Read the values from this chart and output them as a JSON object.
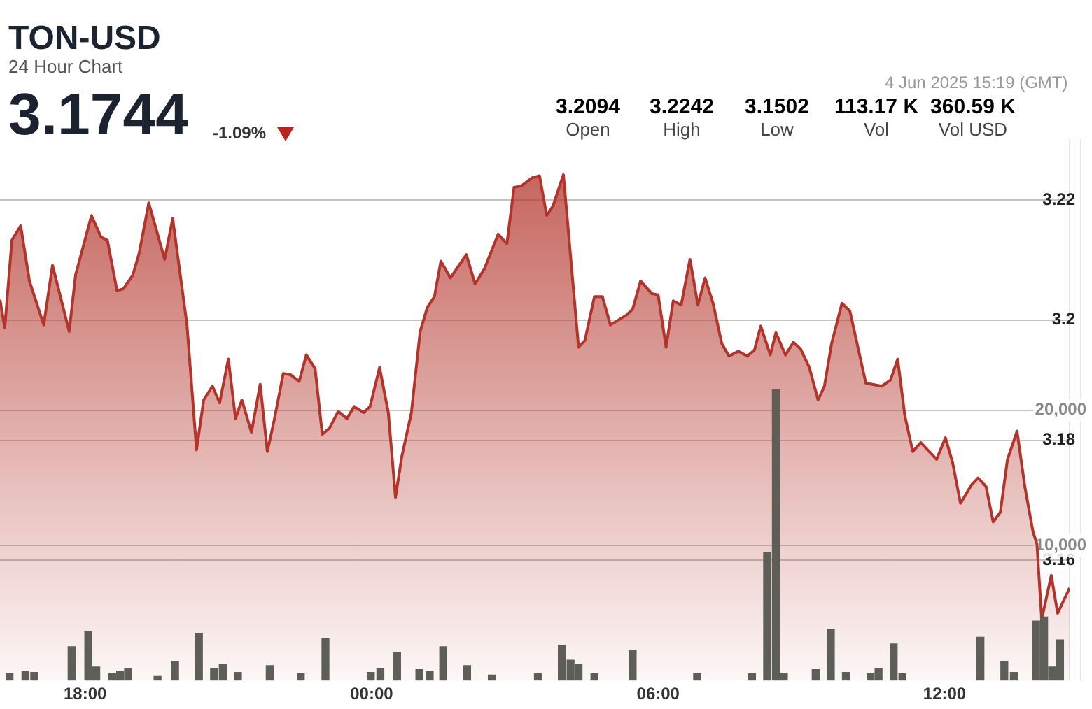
{
  "chart_data": {
    "type": "area",
    "title": "TON-USD",
    "subtitle": "24 Hour Chart",
    "annotations": [
      "3.1744",
      "-1.09%",
      "4 Jun 2025 15:19 (GMT)",
      "3.2094",
      "Open",
      "3.2242",
      "High",
      "3.1502",
      "Low",
      "113.17 K",
      "Vol",
      "360.59 K",
      "Vol USD"
    ],
    "xlim": [
      "2025-06-03T16:13",
      "2025-06-04T14:37"
    ],
    "xticks": [
      {
        "value": "2025-06-03T18:00",
        "label": "18:00"
      },
      {
        "value": "2025-06-04T00:00",
        "label": "00:00"
      },
      {
        "value": "2025-06-04T06:00",
        "label": "06:00"
      },
      {
        "value": "2025-06-04T12:00",
        "label": "12:00"
      }
    ],
    "ylim": [
      3.14,
      3.23
    ],
    "yticks": [
      3.16,
      3.18,
      3.2,
      3.22
    ],
    "y2lim": [
      0,
      40000
    ],
    "y2ticks": [
      {
        "value": 10000,
        "label": "10,000"
      },
      {
        "value": 20000,
        "label": "20,000"
      }
    ],
    "grid": "y",
    "legend": false,
    "marker": "none",
    "line_style": "solid",
    "series": [
      {
        "color": "#b3342a",
        "x": [
          "2025-06-03T16:13",
          "2025-06-03T16:19",
          "2025-06-03T16:28",
          "2025-06-03T16:39",
          "2025-06-03T16:50",
          "2025-06-03T17:08",
          "2025-06-03T17:19",
          "2025-06-03T17:40",
          "2025-06-03T17:48",
          "2025-06-03T18:08",
          "2025-06-03T18:20",
          "2025-06-03T18:28",
          "2025-06-03T18:40",
          "2025-06-03T18:48",
          "2025-06-03T19:00",
          "2025-06-03T19:08",
          "2025-06-03T19:20",
          "2025-06-03T19:40",
          "2025-06-03T19:50",
          "2025-06-03T20:08",
          "2025-06-03T20:20",
          "2025-06-03T20:29",
          "2025-06-03T20:40",
          "2025-06-03T20:49",
          "2025-06-03T21:00",
          "2025-06-03T21:09",
          "2025-06-03T21:17",
          "2025-06-03T21:29",
          "2025-06-03T21:40",
          "2025-06-03T21:49",
          "2025-06-03T21:58",
          "2025-06-03T22:09",
          "2025-06-03T22:18",
          "2025-06-03T22:29",
          "2025-06-03T22:38",
          "2025-06-03T22:49",
          "2025-06-03T22:58",
          "2025-06-03T23:07",
          "2025-06-03T23:18",
          "2025-06-03T23:29",
          "2025-06-03T23:38",
          "2025-06-03T23:50",
          "2025-06-03T23:58",
          "2025-06-04T00:10",
          "2025-06-04T00:21",
          "2025-06-04T00:30",
          "2025-06-04T00:38",
          "2025-06-04T00:50",
          "2025-06-04T01:01",
          "2025-06-04T01:10",
          "2025-06-04T01:19",
          "2025-06-04T01:27",
          "2025-06-04T01:39",
          "2025-06-04T01:59",
          "2025-06-04T02:10",
          "2025-06-04T02:22",
          "2025-06-04T02:39",
          "2025-06-04T02:50",
          "2025-06-04T02:59",
          "2025-06-04T03:08",
          "2025-06-04T03:22",
          "2025-06-04T03:31",
          "2025-06-04T03:40",
          "2025-06-04T03:48",
          "2025-06-04T04:01",
          "2025-06-04T04:20",
          "2025-06-04T04:28",
          "2025-06-04T04:40",
          "2025-06-04T04:50",
          "2025-06-04T05:00",
          "2025-06-04T05:20",
          "2025-06-04T05:28",
          "2025-06-04T05:38",
          "2025-06-04T05:52",
          "2025-06-04T06:00",
          "2025-06-04T06:10",
          "2025-06-04T06:19",
          "2025-06-04T06:29",
          "2025-06-04T06:40",
          "2025-06-04T06:50",
          "2025-06-04T06:59",
          "2025-06-04T07:09",
          "2025-06-04T07:20",
          "2025-06-04T07:29",
          "2025-06-04T07:41",
          "2025-06-04T07:52",
          "2025-06-04T08:01",
          "2025-06-04T08:09",
          "2025-06-04T08:21",
          "2025-06-04T08:28",
          "2025-06-04T08:40",
          "2025-06-04T08:50",
          "2025-06-04T08:59",
          "2025-06-04T09:10",
          "2025-06-04T09:21",
          "2025-06-04T09:29",
          "2025-06-04T09:38",
          "2025-06-04T09:51",
          "2025-06-04T10:01",
          "2025-06-04T10:21",
          "2025-06-04T10:41",
          "2025-06-04T10:52",
          "2025-06-04T11:01",
          "2025-06-04T11:10",
          "2025-06-04T11:20",
          "2025-06-04T11:30",
          "2025-06-04T11:50",
          "2025-06-04T12:01",
          "2025-06-04T12:10",
          "2025-06-04T12:20",
          "2025-06-04T12:34",
          "2025-06-04T12:42",
          "2025-06-04T12:52",
          "2025-06-04T13:01",
          "2025-06-04T13:10",
          "2025-06-04T13:19",
          "2025-06-04T13:31",
          "2025-06-04T13:41",
          "2025-06-04T13:51",
          "2025-06-04T13:56",
          "2025-06-04T14:02",
          "2025-06-04T14:14",
          "2025-06-04T14:22",
          "2025-06-04T14:37"
        ],
        "values": [
          3.2034,
          3.1987,
          3.2133,
          3.2157,
          3.2065,
          3.1992,
          3.2091,
          3.1981,
          3.2075,
          3.2174,
          3.2138,
          3.2133,
          3.2049,
          3.2052,
          3.2075,
          3.2112,
          3.2195,
          3.2101,
          3.2169,
          3.1992,
          3.1784,
          3.1867,
          3.189,
          3.1862,
          3.1935,
          3.1836,
          3.1867,
          3.1813,
          3.1893,
          3.1781,
          3.1836,
          3.1911,
          3.1909,
          3.1898,
          3.1942,
          3.1919,
          3.181,
          3.182,
          3.1848,
          3.1836,
          3.1856,
          3.1846,
          3.1856,
          3.1921,
          3.1846,
          3.1705,
          3.1773,
          3.1846,
          3.1981,
          3.2021,
          3.2039,
          3.2098,
          3.207,
          3.2109,
          3.206,
          3.2086,
          3.2143,
          3.2127,
          3.2221,
          3.2223,
          3.2237,
          3.224,
          3.2174,
          3.219,
          3.2242,
          3.1955,
          3.1966,
          3.2039,
          3.2039,
          3.1992,
          3.2008,
          3.2018,
          3.2065,
          3.2044,
          3.2042,
          3.1955,
          3.2032,
          3.2025,
          3.2101,
          3.2025,
          3.207,
          3.2028,
          3.1961,
          3.194,
          3.1948,
          3.194,
          3.195,
          3.199,
          3.1942,
          3.1979,
          3.1942,
          3.1963,
          3.1952,
          3.1921,
          3.1867,
          3.189,
          3.1961,
          3.2028,
          3.2015,
          3.1895,
          3.189,
          3.19,
          3.1935,
          3.1841,
          3.1781,
          3.1796,
          3.1768,
          3.1804,
          3.1763,
          3.1695,
          3.1726,
          3.1737,
          3.1723,
          3.1664,
          3.168,
          3.1768,
          3.1815,
          3.1721,
          3.1648,
          3.1627,
          3.1502,
          3.1575,
          3.1512,
          3.1554
        ]
      },
      {
        "type": "bar",
        "axis": "y2",
        "color": "#5e5e58",
        "x": [
          "2025-06-03T16:25",
          "2025-06-03T16:45",
          "2025-06-03T16:56",
          "2025-06-03T17:43",
          "2025-06-03T18:04",
          "2025-06-03T18:14",
          "2025-06-03T18:34",
          "2025-06-03T18:44",
          "2025-06-03T18:54",
          "2025-06-03T19:31",
          "2025-06-03T19:53",
          "2025-06-03T20:23",
          "2025-06-03T20:42",
          "2025-06-03T20:53",
          "2025-06-03T21:12",
          "2025-06-03T21:52",
          "2025-06-03T22:31",
          "2025-06-03T23:02",
          "2025-06-03T23:59",
          "2025-06-04T00:11",
          "2025-06-04T00:32",
          "2025-06-04T01:00",
          "2025-06-04T01:13",
          "2025-06-04T01:30",
          "2025-06-04T02:00",
          "2025-06-04T02:31",
          "2025-06-04T03:29",
          "2025-06-04T03:59",
          "2025-06-04T04:10",
          "2025-06-04T04:20",
          "2025-06-04T04:40",
          "2025-06-04T05:28",
          "2025-06-04T06:49",
          "2025-06-04T07:58",
          "2025-06-04T08:17",
          "2025-06-04T08:28",
          "2025-06-04T08:38",
          "2025-06-04T09:18",
          "2025-06-04T09:37",
          "2025-06-04T09:56",
          "2025-06-04T10:27",
          "2025-06-04T10:37",
          "2025-06-04T10:56",
          "2025-06-04T11:07",
          "2025-06-04T12:45",
          "2025-06-04T13:15",
          "2025-06-04T13:27",
          "2025-06-04T13:55",
          "2025-06-04T14:05",
          "2025-06-04T14:15",
          "2025-06-04T14:25"
        ],
        "values": [
          500,
          700,
          600,
          2500,
          3600,
          1000,
          500,
          700,
          900,
          300,
          1400,
          3500,
          900,
          1200,
          600,
          1100,
          500,
          3100,
          600,
          900,
          2100,
          800,
          700,
          2500,
          1100,
          400,
          500,
          2600,
          1500,
          1200,
          500,
          2200,
          500,
          500,
          9500,
          21500,
          500,
          800,
          3800,
          600,
          500,
          900,
          2700,
          500,
          3200,
          1400,
          600,
          4400,
          4700,
          1000,
          3000
        ]
      }
    ]
  }
}
